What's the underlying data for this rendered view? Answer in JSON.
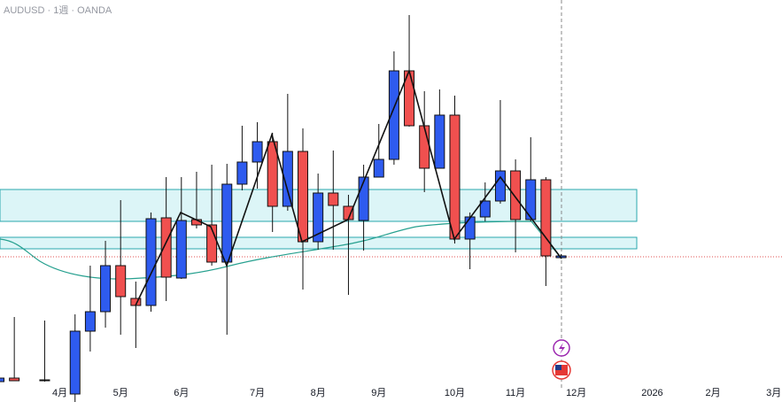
{
  "chart_data": {
    "type": "candlestick",
    "title": "AUDUSD · 1週 · OANDA",
    "categories": [
      null,
      null,
      null,
      null,
      "4月",
      null,
      null,
      null,
      "5月",
      null,
      null,
      null,
      "6月",
      null,
      null,
      null,
      null,
      "7月",
      null,
      null,
      null,
      "8月",
      null,
      null,
      null,
      "9月",
      null,
      null,
      null,
      null,
      "10月",
      null,
      null,
      null,
      "11月",
      null,
      null,
      null,
      "12月",
      null,
      null,
      null,
      null,
      "2026",
      null,
      null,
      null,
      "2月",
      null,
      null,
      null,
      "3月"
    ],
    "open": [
      0.6319,
      0.6323,
      null,
      0.6321,
      null,
      0.6305,
      0.6376,
      0.6398,
      0.645,
      0.6413,
      0.6405,
      0.6504,
      0.6436,
      0.6502,
      0.6496,
      0.6454,
      0.6542,
      0.6567,
      0.659,
      0.6517,
      0.6579,
      0.6477,
      0.6532,
      0.6517,
      0.6501,
      0.655,
      0.657,
      0.667,
      0.6608,
      0.656,
      0.662,
      0.648,
      0.6505,
      0.6523,
      0.6557,
      0.6502,
      0.6547,
      0.6459,
      null,
      null,
      null,
      null,
      null,
      null,
      null,
      null,
      null,
      null,
      null,
      null,
      null,
      null
    ],
    "high": [
      0.6325,
      0.6392,
      null,
      0.6388,
      null,
      0.6395,
      0.645,
      0.6478,
      0.6524,
      0.6432,
      0.651,
      0.655,
      0.655,
      0.6556,
      0.6564,
      0.6565,
      0.6608,
      0.6612,
      0.66,
      0.6644,
      0.6605,
      0.6554,
      0.658,
      0.653,
      0.6564,
      0.661,
      0.6692,
      0.6733,
      0.6647,
      0.6649,
      0.6642,
      0.651,
      0.6544,
      0.6637,
      0.657,
      0.6595,
      0.655,
      0.6463,
      null,
      null,
      null,
      null,
      null,
      null,
      null,
      null,
      null,
      null,
      null,
      null,
      null,
      null
    ],
    "low": [
      0.6317,
      0.632,
      null,
      0.6319,
      null,
      0.6296,
      0.6353,
      0.638,
      0.6372,
      0.6357,
      0.6398,
      0.641,
      0.6435,
      0.6492,
      0.645,
      0.6372,
      0.6535,
      0.6537,
      0.6488,
      0.6512,
      0.6423,
      0.6468,
      0.6468,
      0.6417,
      0.6467,
      0.655,
      0.6564,
      0.6607,
      0.6533,
      0.656,
      0.6475,
      0.6446,
      0.65,
      0.652,
      0.6465,
      0.65,
      0.6427,
      0.6458,
      null,
      null,
      null,
      null,
      null,
      null,
      null,
      null,
      null,
      null,
      null,
      null,
      null,
      null
    ],
    "close": [
      0.6323,
      0.632,
      null,
      0.632,
      null,
      0.6376,
      0.6398,
      0.645,
      0.6415,
      0.6405,
      0.6503,
      0.6437,
      0.6501,
      0.6496,
      0.6454,
      0.6542,
      0.6567,
      0.659,
      0.6517,
      0.6579,
      0.6477,
      0.6532,
      0.6518,
      0.6502,
      0.655,
      0.657,
      0.667,
      0.6608,
      0.656,
      0.662,
      0.648,
      0.6505,
      0.6523,
      0.6557,
      0.6502,
      0.6547,
      0.6461,
      0.6461,
      null,
      null,
      null,
      null,
      null,
      null,
      null,
      null,
      null,
      null,
      null,
      null,
      null,
      null
    ],
    "up_color": "#2e5bef",
    "down_color": "#f0504f",
    "ylim": [
      0.6296,
      0.675
    ]
  }
}
